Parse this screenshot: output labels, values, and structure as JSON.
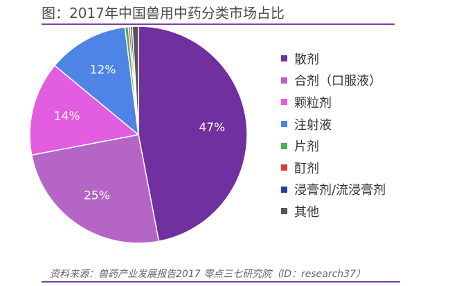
{
  "header": {
    "title": "图：2017年中国兽用中药分类市场占比"
  },
  "footer": {
    "source": "资料来源：兽药产业发展报告2017  零点三七研究院（ID：research37）"
  },
  "chart_data": {
    "type": "pie",
    "title": "图：2017年中国兽用中药分类市场占比",
    "categories": [
      "散剂",
      "合剂（口服液）",
      "颗粒剂",
      "注射液",
      "片剂",
      "酊剂",
      "浸膏剂/流浸膏剂",
      "其他"
    ],
    "values": [
      47,
      25,
      14,
      12,
      0.5,
      0.3,
      0.3,
      0.9
    ],
    "data_labels": [
      "47%",
      "25%",
      "14%",
      "12%",
      "",
      "",
      "",
      ""
    ],
    "colors": [
      "#7030a0",
      "#b565c5",
      "#e25de0",
      "#4d84e6",
      "#4caf50",
      "#e53935",
      "#1a3f9e",
      "#555555"
    ],
    "legend_position": "right",
    "start": "12 o'clock",
    "direction": "clockwise"
  }
}
